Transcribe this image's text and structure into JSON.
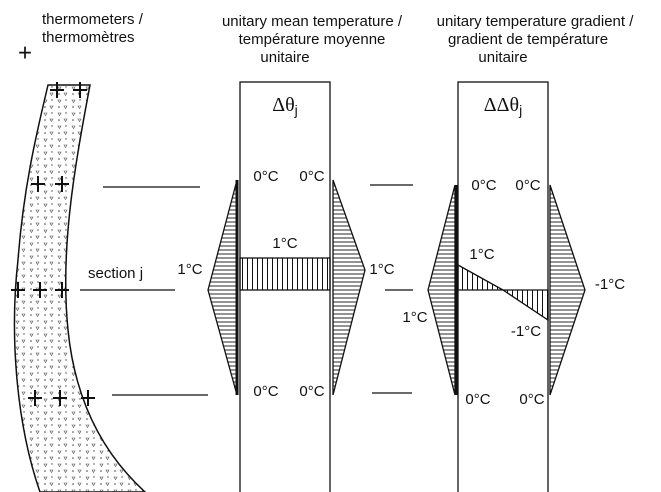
{
  "legend": {
    "symbol": "+",
    "text": [
      "thermometers /",
      "thermomètres"
    ]
  },
  "section_label": "section j",
  "panels": [
    {
      "title": [
        "unitary mean temperature /",
        "température moyenne",
        "unitaire"
      ],
      "symbol": "Δθ",
      "subscript": "j",
      "labels": [
        "0°C",
        "0°C",
        "1°C",
        "1°C",
        "1°C",
        "0°C",
        "0°C"
      ]
    },
    {
      "title": [
        "unitary temperature gradient /",
        "gradient de température",
        "unitaire"
      ],
      "symbol": "ΔΔθ",
      "subscript": "j",
      "labels": [
        "0°C",
        "0°C",
        "1°C",
        "1°C",
        "-1°C",
        "-1°C",
        "0°C",
        "0°C"
      ]
    }
  ]
}
